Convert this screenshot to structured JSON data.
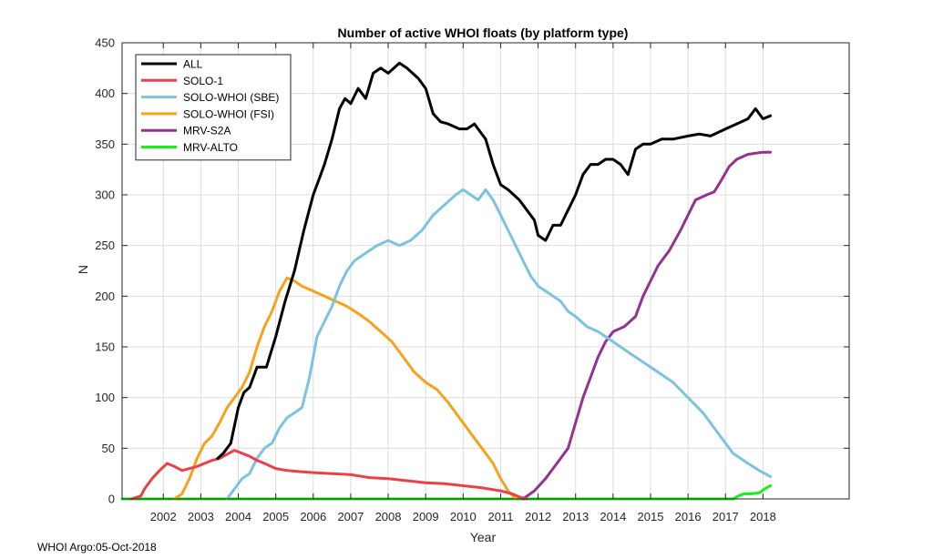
{
  "footer_text": "WHOI Argo:05-Oct-2018",
  "chart_data": {
    "type": "line",
    "title": "Number of active WHOI floats (by platform type)",
    "xlabel": "Year",
    "ylabel": "N",
    "xlim": [
      2000.9,
      2020.3
    ],
    "ylim": [
      0,
      450
    ],
    "xticks": [
      2002,
      2003,
      2004,
      2005,
      2006,
      2007,
      2008,
      2009,
      2010,
      2011,
      2012,
      2013,
      2014,
      2015,
      2016,
      2017,
      2018
    ],
    "yticks": [
      0,
      50,
      100,
      150,
      200,
      250,
      300,
      350,
      400,
      450
    ],
    "grid": true,
    "legend_position": "top-left",
    "series": [
      {
        "name": "ALL",
        "color": "#000000",
        "points": [
          [
            2003.45,
            40
          ],
          [
            2003.6,
            45
          ],
          [
            2003.8,
            55
          ],
          [
            2004.0,
            90
          ],
          [
            2004.15,
            105
          ],
          [
            2004.3,
            110
          ],
          [
            2004.5,
            130
          ],
          [
            2004.75,
            130
          ],
          [
            2005.0,
            160
          ],
          [
            2005.25,
            195
          ],
          [
            2005.5,
            225
          ],
          [
            2005.75,
            265
          ],
          [
            2006.0,
            300
          ],
          [
            2006.15,
            315
          ],
          [
            2006.3,
            330
          ],
          [
            2006.5,
            355
          ],
          [
            2006.7,
            385
          ],
          [
            2006.85,
            395
          ],
          [
            2007.0,
            390
          ],
          [
            2007.2,
            405
          ],
          [
            2007.4,
            395
          ],
          [
            2007.6,
            420
          ],
          [
            2007.8,
            425
          ],
          [
            2008.0,
            420
          ],
          [
            2008.3,
            430
          ],
          [
            2008.5,
            425
          ],
          [
            2008.8,
            415
          ],
          [
            2009.0,
            405
          ],
          [
            2009.2,
            380
          ],
          [
            2009.4,
            372
          ],
          [
            2009.6,
            370
          ],
          [
            2009.9,
            365
          ],
          [
            2010.1,
            365
          ],
          [
            2010.3,
            370
          ],
          [
            2010.6,
            355
          ],
          [
            2010.8,
            330
          ],
          [
            2011.0,
            310
          ],
          [
            2011.2,
            305
          ],
          [
            2011.5,
            295
          ],
          [
            2011.7,
            285
          ],
          [
            2011.9,
            275
          ],
          [
            2012.0,
            260
          ],
          [
            2012.2,
            255
          ],
          [
            2012.4,
            270
          ],
          [
            2012.6,
            270
          ],
          [
            2012.8,
            285
          ],
          [
            2013.0,
            300
          ],
          [
            2013.2,
            320
          ],
          [
            2013.4,
            330
          ],
          [
            2013.6,
            330
          ],
          [
            2013.8,
            335
          ],
          [
            2014.0,
            335
          ],
          [
            2014.2,
            330
          ],
          [
            2014.4,
            320
          ],
          [
            2014.6,
            345
          ],
          [
            2014.8,
            350
          ],
          [
            2015.0,
            350
          ],
          [
            2015.3,
            355
          ],
          [
            2015.6,
            355
          ],
          [
            2016.0,
            358
          ],
          [
            2016.3,
            360
          ],
          [
            2016.6,
            358
          ],
          [
            2017.0,
            365
          ],
          [
            2017.3,
            370
          ],
          [
            2017.6,
            375
          ],
          [
            2017.8,
            385
          ],
          [
            2018.0,
            375
          ],
          [
            2018.2,
            378
          ]
        ]
      },
      {
        "name": "SOLO-1",
        "color": "#e8414a",
        "points": [
          [
            2001.15,
            0
          ],
          [
            2001.4,
            3
          ],
          [
            2001.5,
            10
          ],
          [
            2001.7,
            20
          ],
          [
            2001.9,
            28
          ],
          [
            2002.1,
            35
          ],
          [
            2002.3,
            32
          ],
          [
            2002.5,
            28
          ],
          [
            2002.7,
            30
          ],
          [
            2002.9,
            32
          ],
          [
            2003.1,
            35
          ],
          [
            2003.3,
            38
          ],
          [
            2003.5,
            40
          ],
          [
            2003.7,
            44
          ],
          [
            2003.9,
            48
          ],
          [
            2004.1,
            45
          ],
          [
            2004.3,
            42
          ],
          [
            2004.5,
            38
          ],
          [
            2004.7,
            35
          ],
          [
            2005.0,
            30
          ],
          [
            2005.3,
            28
          ],
          [
            2005.6,
            27
          ],
          [
            2006.0,
            26
          ],
          [
            2006.5,
            25
          ],
          [
            2007.0,
            24
          ],
          [
            2007.5,
            21
          ],
          [
            2008.0,
            20
          ],
          [
            2008.5,
            18
          ],
          [
            2009.0,
            16
          ],
          [
            2009.5,
            15
          ],
          [
            2010.0,
            13
          ],
          [
            2010.5,
            11
          ],
          [
            2011.0,
            8
          ],
          [
            2011.3,
            5
          ],
          [
            2011.5,
            2
          ],
          [
            2011.7,
            0
          ]
        ]
      },
      {
        "name": "SOLO-WHOI (SBE)",
        "color": "#7dc2de",
        "points": [
          [
            2003.7,
            0
          ],
          [
            2003.9,
            10
          ],
          [
            2004.1,
            20
          ],
          [
            2004.3,
            25
          ],
          [
            2004.5,
            40
          ],
          [
            2004.7,
            50
          ],
          [
            2004.9,
            55
          ],
          [
            2005.1,
            70
          ],
          [
            2005.3,
            80
          ],
          [
            2005.5,
            85
          ],
          [
            2005.7,
            90
          ],
          [
            2005.9,
            120
          ],
          [
            2006.1,
            160
          ],
          [
            2006.3,
            175
          ],
          [
            2006.5,
            190
          ],
          [
            2006.7,
            210
          ],
          [
            2006.9,
            225
          ],
          [
            2007.1,
            235
          ],
          [
            2007.3,
            240
          ],
          [
            2007.5,
            245
          ],
          [
            2007.7,
            250
          ],
          [
            2008.0,
            255
          ],
          [
            2008.3,
            250
          ],
          [
            2008.6,
            255
          ],
          [
            2008.9,
            265
          ],
          [
            2009.2,
            280
          ],
          [
            2009.5,
            290
          ],
          [
            2009.8,
            300
          ],
          [
            2010.0,
            305
          ],
          [
            2010.2,
            300
          ],
          [
            2010.4,
            295
          ],
          [
            2010.6,
            305
          ],
          [
            2010.8,
            295
          ],
          [
            2011.0,
            280
          ],
          [
            2011.2,
            265
          ],
          [
            2011.4,
            250
          ],
          [
            2011.6,
            235
          ],
          [
            2011.8,
            220
          ],
          [
            2012.0,
            210
          ],
          [
            2012.2,
            205
          ],
          [
            2012.4,
            200
          ],
          [
            2012.6,
            195
          ],
          [
            2012.8,
            185
          ],
          [
            2013.0,
            180
          ],
          [
            2013.3,
            170
          ],
          [
            2013.6,
            165
          ],
          [
            2014.0,
            155
          ],
          [
            2014.4,
            145
          ],
          [
            2014.8,
            135
          ],
          [
            2015.2,
            125
          ],
          [
            2015.6,
            115
          ],
          [
            2016.0,
            100
          ],
          [
            2016.4,
            85
          ],
          [
            2016.8,
            65
          ],
          [
            2017.2,
            45
          ],
          [
            2017.6,
            35
          ],
          [
            2017.9,
            28
          ],
          [
            2018.2,
            22
          ]
        ]
      },
      {
        "name": "SOLO-WHOI (FSI)",
        "color": "#f5a21c",
        "points": [
          [
            2002.3,
            0
          ],
          [
            2002.5,
            5
          ],
          [
            2002.7,
            20
          ],
          [
            2002.9,
            40
          ],
          [
            2003.1,
            55
          ],
          [
            2003.3,
            62
          ],
          [
            2003.5,
            75
          ],
          [
            2003.7,
            90
          ],
          [
            2003.9,
            100
          ],
          [
            2004.1,
            110
          ],
          [
            2004.3,
            125
          ],
          [
            2004.5,
            150
          ],
          [
            2004.7,
            170
          ],
          [
            2004.9,
            185
          ],
          [
            2005.1,
            205
          ],
          [
            2005.3,
            218
          ],
          [
            2005.5,
            215
          ],
          [
            2005.7,
            210
          ],
          [
            2006.0,
            205
          ],
          [
            2006.3,
            200
          ],
          [
            2006.6,
            195
          ],
          [
            2006.9,
            190
          ],
          [
            2007.2,
            183
          ],
          [
            2007.5,
            175
          ],
          [
            2007.8,
            165
          ],
          [
            2008.1,
            155
          ],
          [
            2008.4,
            140
          ],
          [
            2008.7,
            125
          ],
          [
            2009.0,
            115
          ],
          [
            2009.3,
            108
          ],
          [
            2009.6,
            95
          ],
          [
            2009.9,
            80
          ],
          [
            2010.2,
            65
          ],
          [
            2010.5,
            50
          ],
          [
            2010.8,
            35
          ],
          [
            2011.0,
            20
          ],
          [
            2011.2,
            8
          ],
          [
            2011.4,
            0
          ]
        ]
      },
      {
        "name": "MRV-S2A",
        "color": "#93328f",
        "points": [
          [
            2011.6,
            0
          ],
          [
            2011.9,
            8
          ],
          [
            2012.2,
            20
          ],
          [
            2012.5,
            35
          ],
          [
            2012.8,
            50
          ],
          [
            2013.0,
            75
          ],
          [
            2013.2,
            100
          ],
          [
            2013.4,
            120
          ],
          [
            2013.6,
            140
          ],
          [
            2013.8,
            155
          ],
          [
            2014.0,
            165
          ],
          [
            2014.3,
            170
          ],
          [
            2014.6,
            180
          ],
          [
            2014.8,
            200
          ],
          [
            2015.0,
            215
          ],
          [
            2015.2,
            230
          ],
          [
            2015.5,
            245
          ],
          [
            2015.8,
            265
          ],
          [
            2016.0,
            280
          ],
          [
            2016.2,
            295
          ],
          [
            2016.5,
            300
          ],
          [
            2016.7,
            303
          ],
          [
            2016.9,
            315
          ],
          [
            2017.1,
            328
          ],
          [
            2017.3,
            335
          ],
          [
            2017.6,
            340
          ],
          [
            2018.0,
            342
          ],
          [
            2018.2,
            342
          ]
        ]
      },
      {
        "name": "MRV-ALTO",
        "color": "#19ee19",
        "points": [
          [
            2000.9,
            0
          ],
          [
            2017.2,
            0
          ],
          [
            2017.35,
            3
          ],
          [
            2017.5,
            5
          ],
          [
            2017.7,
            5
          ],
          [
            2017.9,
            6
          ],
          [
            2018.05,
            10
          ],
          [
            2018.2,
            13
          ]
        ]
      }
    ]
  }
}
